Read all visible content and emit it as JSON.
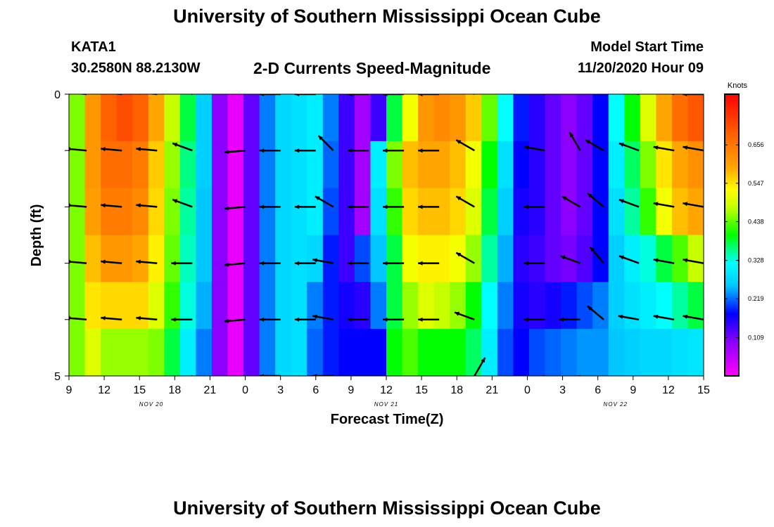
{
  "header": {
    "title": "University of Southern Mississippi Ocean Cube",
    "station_id": "KATA1",
    "station_coords": "30.2580N 88.2130W",
    "plot_title": "2-D Currents Speed-Magnitude",
    "model_start_label": "Model Start Time",
    "model_start_value": "11/20/2020 Hour 09"
  },
  "footer": {
    "title": "University of Southern Mississippi Ocean Cube"
  },
  "chart_data": {
    "type": "heatmap",
    "title": "2-D Currents Speed-Magnitude",
    "xlabel": "Forecast Time(Z)",
    "ylabel": "Depth (ft)",
    "x_hours": [
      0,
      54
    ],
    "y_depth_range": [
      0,
      5
    ],
    "y_tick_labels": [
      "0",
      "5"
    ],
    "x_tick_labels": [
      "9",
      "12",
      "15",
      "18",
      "21",
      "0",
      "3",
      "6",
      "9",
      "12",
      "15",
      "18",
      "21",
      "0",
      "3",
      "6",
      "9",
      "12",
      "15"
    ],
    "date_labels": [
      {
        "text": "NOV 20",
        "hour": 7
      },
      {
        "text": "NOV 21",
        "hour": 27
      },
      {
        "text": "NOV 22",
        "hour": 46.5
      }
    ],
    "colorbar": {
      "label": "Knots",
      "min": 0,
      "max": 0.8,
      "tick_labels": [
        "0.109",
        "0.219",
        "0.328",
        "0.438",
        "0.547",
        "0.656"
      ],
      "tick_values": [
        0.109,
        0.219,
        0.328,
        0.438,
        0.547,
        0.656
      ]
    },
    "speed_rows_knots": [
      [
        0.45,
        0.62,
        0.7,
        0.72,
        0.7,
        0.6,
        0.48,
        0.38,
        0.26,
        0.1,
        0.02,
        0.12,
        0.22,
        0.27,
        0.28,
        0.3,
        0.22,
        0.14,
        0.08,
        0.14,
        0.38,
        0.52,
        0.62,
        0.64,
        0.62,
        0.57,
        0.44,
        0.32,
        0.18,
        0.15,
        0.12,
        0.1,
        0.12,
        0.17,
        0.32,
        0.4,
        0.5,
        0.6,
        0.68,
        0.71
      ],
      [
        0.45,
        0.62,
        0.68,
        0.68,
        0.66,
        0.57,
        0.46,
        0.36,
        0.26,
        0.1,
        0.02,
        0.12,
        0.22,
        0.27,
        0.28,
        0.3,
        0.21,
        0.14,
        0.08,
        0.3,
        0.45,
        0.58,
        0.6,
        0.6,
        0.58,
        0.52,
        0.4,
        0.28,
        0.17,
        0.15,
        0.12,
        0.1,
        0.12,
        0.17,
        0.3,
        0.37,
        0.45,
        0.55,
        0.6,
        0.63
      ],
      [
        0.45,
        0.61,
        0.66,
        0.66,
        0.64,
        0.56,
        0.45,
        0.35,
        0.25,
        0.1,
        0.02,
        0.12,
        0.22,
        0.27,
        0.28,
        0.3,
        0.2,
        0.14,
        0.08,
        0.28,
        0.42,
        0.56,
        0.58,
        0.58,
        0.56,
        0.5,
        0.38,
        0.26,
        0.16,
        0.15,
        0.12,
        0.1,
        0.12,
        0.17,
        0.28,
        0.35,
        0.42,
        0.52,
        0.58,
        0.6
      ],
      [
        0.45,
        0.58,
        0.62,
        0.62,
        0.6,
        0.54,
        0.44,
        0.34,
        0.25,
        0.1,
        0.02,
        0.12,
        0.22,
        0.27,
        0.28,
        0.27,
        0.18,
        0.14,
        0.2,
        0.25,
        0.38,
        0.52,
        0.54,
        0.54,
        0.52,
        0.46,
        0.35,
        0.24,
        0.15,
        0.14,
        0.12,
        0.11,
        0.13,
        0.17,
        0.26,
        0.3,
        0.33,
        0.38,
        0.43,
        0.48
      ],
      [
        0.45,
        0.55,
        0.56,
        0.56,
        0.56,
        0.5,
        0.42,
        0.33,
        0.24,
        0.1,
        0.02,
        0.12,
        0.22,
        0.27,
        0.28,
        0.22,
        0.18,
        0.16,
        0.15,
        0.22,
        0.38,
        0.46,
        0.5,
        0.48,
        0.46,
        0.4,
        0.32,
        0.22,
        0.16,
        0.15,
        0.16,
        0.18,
        0.2,
        0.22,
        0.26,
        0.28,
        0.3,
        0.32,
        0.35,
        0.38
      ],
      [
        0.45,
        0.5,
        0.46,
        0.46,
        0.46,
        0.45,
        0.38,
        0.3,
        0.22,
        0.1,
        0.02,
        0.12,
        0.22,
        0.27,
        0.28,
        0.21,
        0.18,
        0.17,
        0.17,
        0.17,
        0.4,
        0.43,
        0.4,
        0.4,
        0.4,
        0.37,
        0.3,
        0.2,
        0.17,
        0.2,
        0.21,
        0.22,
        0.23,
        0.23,
        0.25,
        0.26,
        0.27,
        0.27,
        0.28,
        0.29
      ]
    ],
    "vector_columns_hour": [
      1.5,
      4.5,
      7.5,
      10.5,
      15,
      18,
      21,
      22.5,
      25.5,
      28.5,
      31.5,
      34.5,
      40.5,
      43.5,
      45.5,
      48.5,
      51.5,
      54
    ],
    "vector_rows_depth": [
      0,
      1,
      2,
      3,
      4,
      5
    ],
    "vectors_deg": [
      [
        185,
        185,
        185,
        200,
        null,
        180,
        180,
        240,
        180,
        180,
        180,
        210,
        190,
        260,
        null,
        190,
        190,
        180
      ],
      [
        185,
        185,
        185,
        200,
        175,
        180,
        180,
        225,
        180,
        180,
        180,
        210,
        190,
        240,
        210,
        200,
        190,
        190
      ],
      [
        185,
        185,
        185,
        200,
        175,
        180,
        180,
        210,
        180,
        180,
        180,
        210,
        180,
        210,
        220,
        200,
        190,
        190
      ],
      [
        185,
        185,
        185,
        180,
        175,
        180,
        180,
        190,
        180,
        180,
        180,
        210,
        180,
        200,
        230,
        200,
        190,
        190
      ],
      [
        185,
        185,
        185,
        180,
        175,
        180,
        180,
        190,
        180,
        180,
        180,
        200,
        180,
        180,
        220,
        190,
        190,
        190
      ],
      [
        null,
        null,
        null,
        160,
        170,
        180,
        175,
        180,
        null,
        null,
        null,
        300,
        170,
        170,
        null,
        null,
        null,
        null
      ]
    ]
  }
}
